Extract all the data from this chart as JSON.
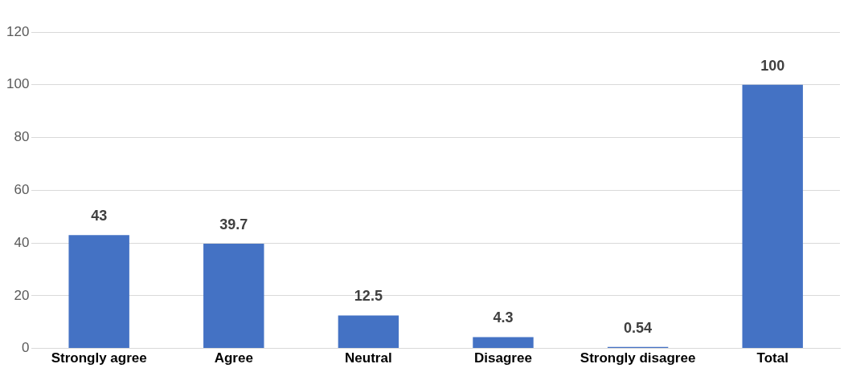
{
  "chart_data": {
    "type": "bar",
    "categories": [
      "Strongly agree",
      "Agree",
      "Neutral",
      "Disagree",
      "Strongly disagree",
      "Total"
    ],
    "values": [
      43,
      39.7,
      12.5,
      4.3,
      0.54,
      100
    ],
    "color": "#4472c4",
    "ylim": [
      0,
      120
    ],
    "yticks": [
      0,
      20,
      40,
      60,
      80,
      100,
      120
    ],
    "grid": "y",
    "legend": false,
    "data_labels": true
  }
}
